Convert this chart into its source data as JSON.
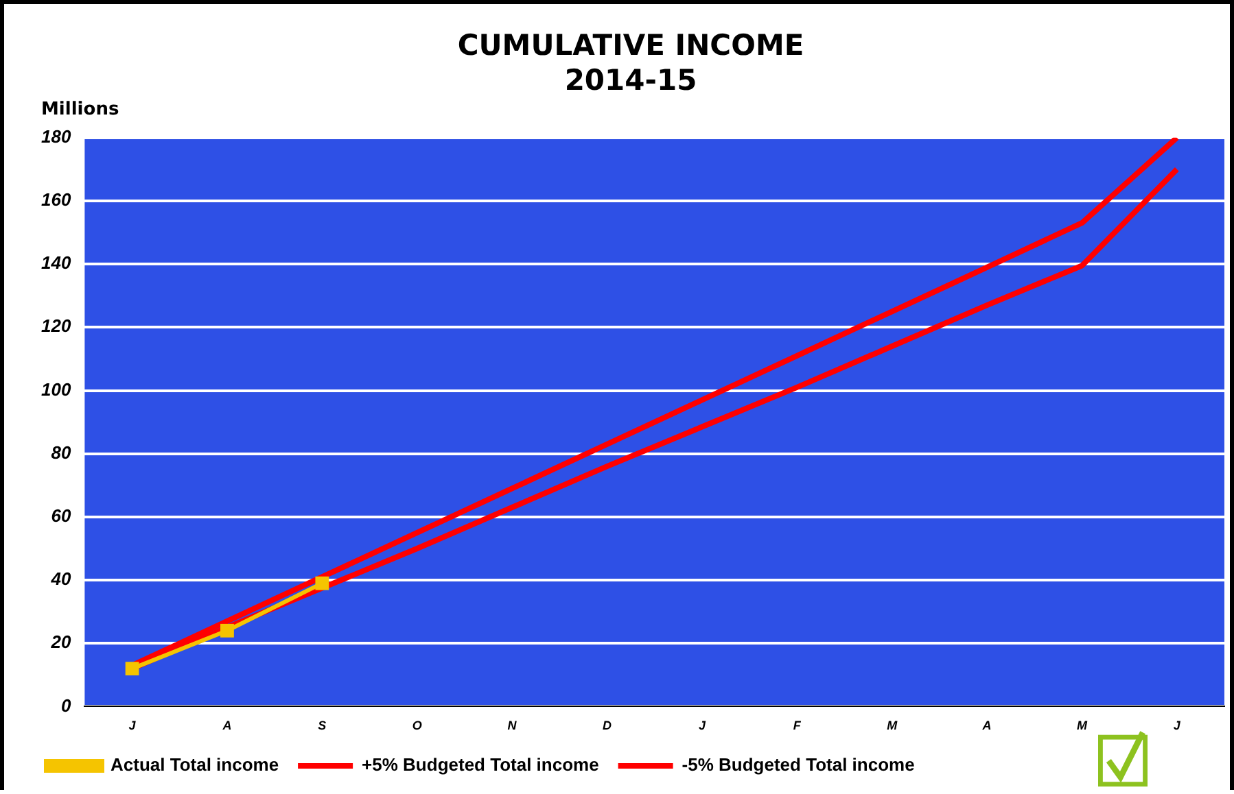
{
  "chart_data": {
    "type": "line",
    "title": "CUMULATIVE INCOME\n2014-15",
    "ylabel": "Millions",
    "categories": [
      "J",
      "A",
      "S",
      "O",
      "N",
      "D",
      "J",
      "F",
      "M",
      "A",
      "M",
      "J"
    ],
    "ylim": [
      0,
      180
    ],
    "yticks": [
      0,
      20,
      40,
      60,
      80,
      100,
      120,
      140,
      160,
      180
    ],
    "grid": "y",
    "legend": "bottom",
    "series": [
      {
        "name": "Actual Total income",
        "color": "#f5c400",
        "marker": "square",
        "line_style": "solid",
        "values": [
          12,
          24,
          39,
          null,
          null,
          null,
          null,
          null,
          null,
          null,
          null,
          null
        ]
      },
      {
        "name": "+5% Budgeted Total income",
        "color": "#ff0000",
        "marker": "none",
        "line_style": "solid",
        "values": [
          13,
          27,
          41,
          55,
          69,
          83,
          97,
          111,
          125,
          139,
          153,
          180
        ]
      },
      {
        "name": "-5% Budgeted Total income",
        "color": "#ff0000",
        "marker": "none",
        "line_style": "solid",
        "values": [
          12,
          25,
          37.5,
          50,
          63,
          76,
          88.5,
          101,
          114,
          127,
          139.5,
          170
        ]
      }
    ]
  }
}
